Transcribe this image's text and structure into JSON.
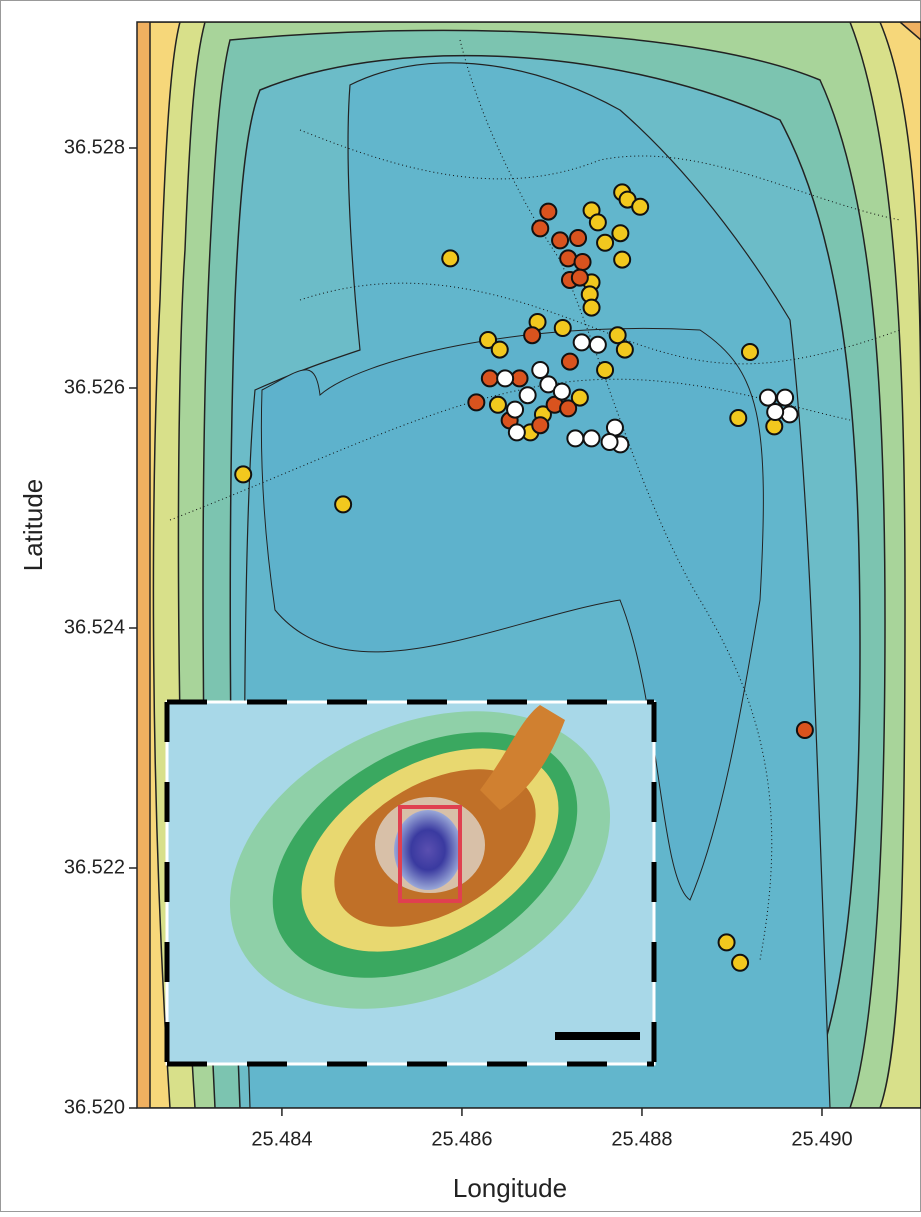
{
  "chart_data": {
    "type": "scatter",
    "x_label": "Longitude",
    "y_label": "Latitude",
    "xlim": [
      25.48239,
      25.4911
    ],
    "ylim": [
      36.52,
      36.52905
    ],
    "xticks": [
      25.484,
      25.486,
      25.488,
      {
        "value": 25.49,
        "label": "25.490"
      }
    ],
    "yticks": [
      {
        "value": 36.52,
        "label": "36.520"
      },
      36.522,
      36.524,
      36.526,
      36.528
    ],
    "series": [
      {
        "color": "#f2c81e",
        "x": [
          25.48587,
          25.48357,
          25.48468,
          25.4892,
          25.48907,
          25.48947,
          25.48894,
          25.48909,
          25.48778,
          25.48784,
          25.48798,
          25.48744,
          25.48751,
          25.48776,
          25.48759,
          25.48778,
          25.48744,
          25.48742,
          25.48744,
          25.48629,
          25.48642,
          25.48684,
          25.48712,
          25.48773,
          25.48781,
          25.48759,
          25.48731,
          25.48676,
          25.4864,
          25.4869
        ],
        "values": [
          36.52708,
          36.52528,
          36.52503,
          36.5263,
          36.52575,
          36.52568,
          36.52138,
          36.52121,
          36.52763,
          36.52757,
          36.52751,
          36.52748,
          36.52738,
          36.52729,
          36.52721,
          36.52707,
          36.52688,
          36.52678,
          36.52667,
          36.5264,
          36.52632,
          36.52655,
          36.5265,
          36.52644,
          36.52632,
          36.52615,
          36.52592,
          36.52563,
          36.52586,
          36.52578
        ]
      },
      {
        "color": "#d9531e",
        "x": [
          25.48696,
          25.48687,
          25.48709,
          25.48729,
          25.48718,
          25.48734,
          25.4872,
          25.48731,
          25.48678,
          25.48631,
          25.48616,
          25.48664,
          25.4872,
          25.48703,
          25.48718,
          25.48687,
          25.48653,
          25.48981
        ],
        "values": [
          36.52747,
          36.52733,
          36.52723,
          36.52725,
          36.52708,
          36.52705,
          36.5269,
          36.52692,
          36.52644,
          36.52608,
          36.52588,
          36.52608,
          36.52622,
          36.52586,
          36.52583,
          36.52569,
          36.52573,
          36.52315
        ]
      },
      {
        "color": "#ffffff",
        "x": [
          25.48733,
          25.48751,
          25.48648,
          25.48687,
          25.48696,
          25.48711,
          25.48659,
          25.48673,
          25.48661,
          25.48726,
          25.48744,
          25.4877,
          25.48776,
          25.48764,
          25.4894,
          25.48959,
          25.48964,
          25.48948
        ],
        "values": [
          36.52638,
          36.52636,
          36.52608,
          36.52615,
          36.52603,
          36.52597,
          36.52582,
          36.52594,
          36.52563,
          36.52558,
          36.52558,
          36.52567,
          36.52553,
          36.52555,
          36.52592,
          36.52592,
          36.52578,
          36.5258
        ]
      }
    ]
  }
}
